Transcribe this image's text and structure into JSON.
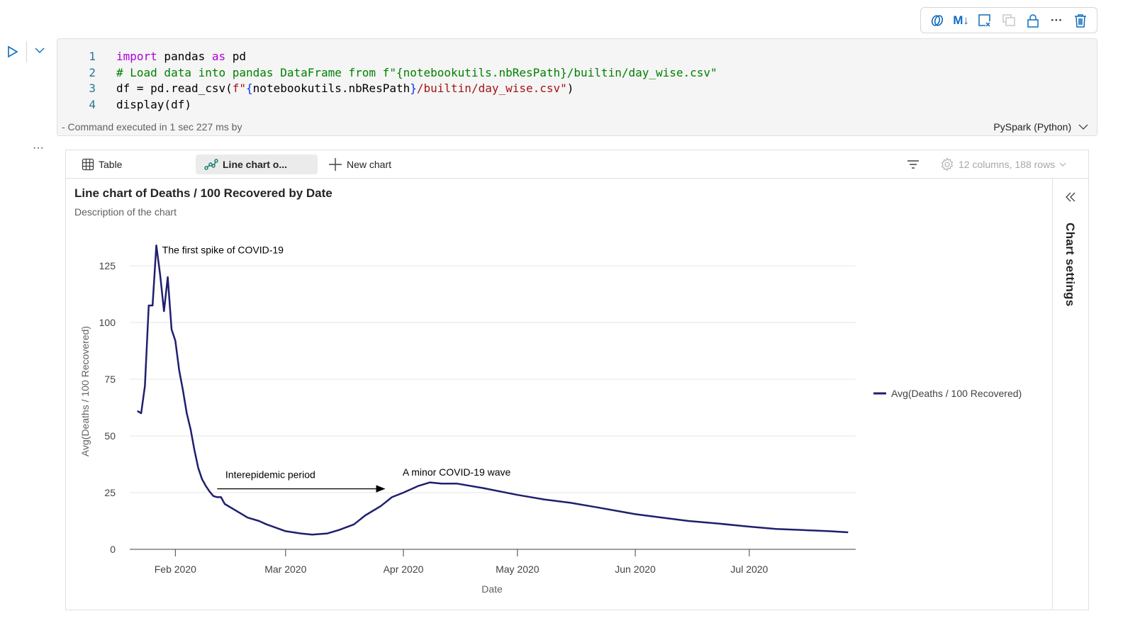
{
  "toolbar": {
    "icons": [
      "copilot-icon",
      "markdown-icon",
      "clear-output-icon",
      "duplicate-icon",
      "lock-icon",
      "more-icon",
      "delete-icon"
    ],
    "markdown_label": "M↓",
    "more_label": "···"
  },
  "cell": {
    "lines": [
      [
        {
          "t": "import",
          "c": "kw"
        },
        {
          "t": " pandas ",
          "c": "pl"
        },
        {
          "t": "as",
          "c": "kw"
        },
        {
          "t": " pd",
          "c": "pl"
        }
      ],
      [
        {
          "t": "# Load data into pandas DataFrame from f\"{notebookutils.nbResPath}/builtin/day_wise.csv\"",
          "c": "cm"
        }
      ],
      [
        {
          "t": "df = pd.read_csv(",
          "c": "pl"
        },
        {
          "t": "f\"",
          "c": "st"
        },
        {
          "t": "{",
          "c": "br"
        },
        {
          "t": "notebookutils.nbResPath",
          "c": "pl"
        },
        {
          "t": "}",
          "c": "br"
        },
        {
          "t": "/builtin/day_wise.csv\"",
          "c": "st"
        },
        {
          "t": ")",
          "c": "pl"
        }
      ],
      [
        {
          "t": "display(df)",
          "c": "pl"
        }
      ]
    ],
    "status": "- Command executed in 1 sec 227 ms by",
    "language": "PySpark (Python)"
  },
  "output": {
    "more_label": "···",
    "tabs": [
      {
        "label": "Table",
        "icon": "table-icon"
      },
      {
        "label": "Line chart o...",
        "icon": "line-chart-icon",
        "active": true
      },
      {
        "label": "New chart",
        "icon": "plus-icon"
      }
    ],
    "summary": "12 columns, 188 rows",
    "settings_label": "Chart settings"
  },
  "chart_data": {
    "type": "line",
    "title": "Line chart of Deaths / 100 Recovered by Date",
    "subtitle": "Description of the chart",
    "xlabel": "Date",
    "ylabel": "Avg(Deaths / 100 Recovered)",
    "xlim": [
      "2020-01-20",
      "2020-07-29"
    ],
    "ylim": [
      0,
      135
    ],
    "yticks": [
      0,
      25,
      50,
      75,
      100,
      125
    ],
    "xticks": [
      {
        "date": "2020-02-01",
        "label": "Feb 2020"
      },
      {
        "date": "2020-03-01",
        "label": "Mar 2020"
      },
      {
        "date": "2020-04-01",
        "label": "Apr 2020"
      },
      {
        "date": "2020-05-01",
        "label": "May 2020"
      },
      {
        "date": "2020-06-01",
        "label": "Jun 2020"
      },
      {
        "date": "2020-07-01",
        "label": "Jul 2020"
      }
    ],
    "grid": true,
    "legend": "right",
    "color": "#1f1f6e",
    "series": [
      {
        "name": "Avg(Deaths / 100 Recovered)",
        "x": [
          "2020-01-22",
          "2020-01-23",
          "2020-01-24",
          "2020-01-25",
          "2020-01-26",
          "2020-01-27",
          "2020-01-28",
          "2020-01-29",
          "2020-01-30",
          "2020-01-31",
          "2020-02-01",
          "2020-02-02",
          "2020-02-03",
          "2020-02-04",
          "2020-02-05",
          "2020-02-06",
          "2020-02-07",
          "2020-02-08",
          "2020-02-09",
          "2020-02-10",
          "2020-02-11",
          "2020-02-12",
          "2020-02-13",
          "2020-02-14",
          "2020-02-17",
          "2020-02-20",
          "2020-02-23",
          "2020-02-25",
          "2020-03-01",
          "2020-03-05",
          "2020-03-08",
          "2020-03-12",
          "2020-03-15",
          "2020-03-19",
          "2020-03-22",
          "2020-03-26",
          "2020-03-29",
          "2020-04-01",
          "2020-04-05",
          "2020-04-08",
          "2020-04-11",
          "2020-04-15",
          "2020-04-22",
          "2020-05-01",
          "2020-05-08",
          "2020-05-15",
          "2020-05-22",
          "2020-06-01",
          "2020-06-08",
          "2020-06-15",
          "2020-06-22",
          "2020-07-01",
          "2020-07-08",
          "2020-07-15",
          "2020-07-22",
          "2020-07-27"
        ],
        "values": [
          61,
          60,
          72,
          107.5,
          107.5,
          134,
          121,
          105,
          120,
          97,
          92,
          79,
          70,
          60,
          53,
          44,
          36,
          31,
          28,
          25.5,
          23.5,
          23,
          23,
          20,
          17,
          14,
          12.5,
          11,
          8,
          7,
          6.5,
          7,
          8.5,
          11,
          15,
          19,
          23,
          25,
          28,
          29.5,
          29,
          29,
          27,
          24,
          22,
          20.5,
          18.5,
          15.5,
          14,
          12.5,
          11.5,
          10,
          9,
          8.5,
          8,
          7.5
        ]
      }
    ],
    "annotations": [
      {
        "text": "The first spike of COVID-19",
        "date": "2020-02-05",
        "value": 132
      },
      {
        "text": "Interepidemic period",
        "date": "2020-02-26",
        "value": 33,
        "arrow": {
          "from": "2020-02-12",
          "to": "2020-03-27",
          "value": 27
        }
      },
      {
        "text": "A minor COVID-19 wave",
        "date": "2020-04-15",
        "value": 34
      }
    ]
  }
}
